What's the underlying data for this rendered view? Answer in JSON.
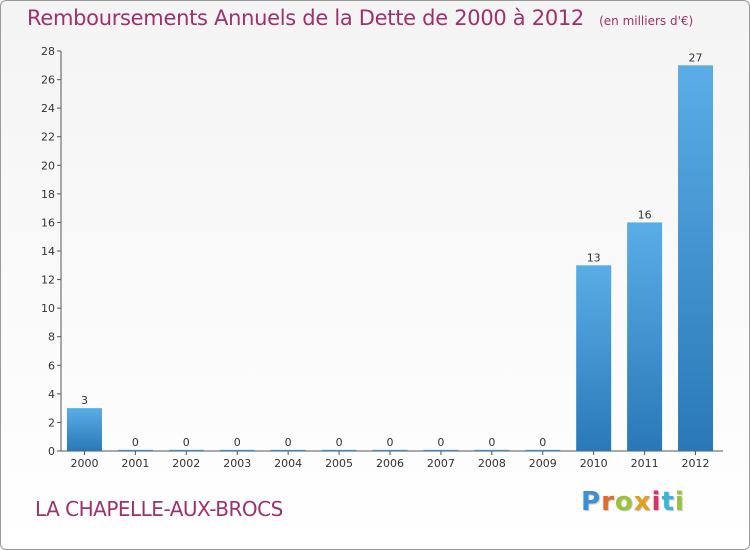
{
  "header": {
    "title": "Remboursements Annuels de la Dette de 2000 à 2012",
    "unit": "(en milliers d'€)"
  },
  "footer": {
    "place": "LA CHAPELLE-AUX-BROCS",
    "logo_letters": [
      "P",
      "r",
      "o",
      "x",
      "i",
      "t",
      "i"
    ]
  },
  "colors": {
    "title": "#a0306b",
    "bar_light": "#5aade6",
    "bar_dark": "#2a78b8",
    "logo": [
      "#3a8fd6",
      "#e5692a",
      "#9ac33a",
      "#e0a020",
      "#d6336c",
      "#3ab5d6",
      "#9ac33a"
    ]
  },
  "chart_data": {
    "type": "bar",
    "title": "Remboursements Annuels de la Dette de 2000 à 2012",
    "xlabel": "",
    "ylabel": "",
    "categories": [
      "2000",
      "2001",
      "2002",
      "2003",
      "2004",
      "2005",
      "2006",
      "2007",
      "2008",
      "2009",
      "2010",
      "2011",
      "2012"
    ],
    "values": [
      3,
      0,
      0,
      0,
      0,
      0,
      0,
      0,
      0,
      0,
      13,
      16,
      27
    ],
    "ylim": [
      0,
      28
    ],
    "yticks": [
      0,
      2,
      4,
      6,
      8,
      10,
      12,
      14,
      16,
      18,
      20,
      22,
      24,
      26,
      28
    ],
    "grid": false
  }
}
